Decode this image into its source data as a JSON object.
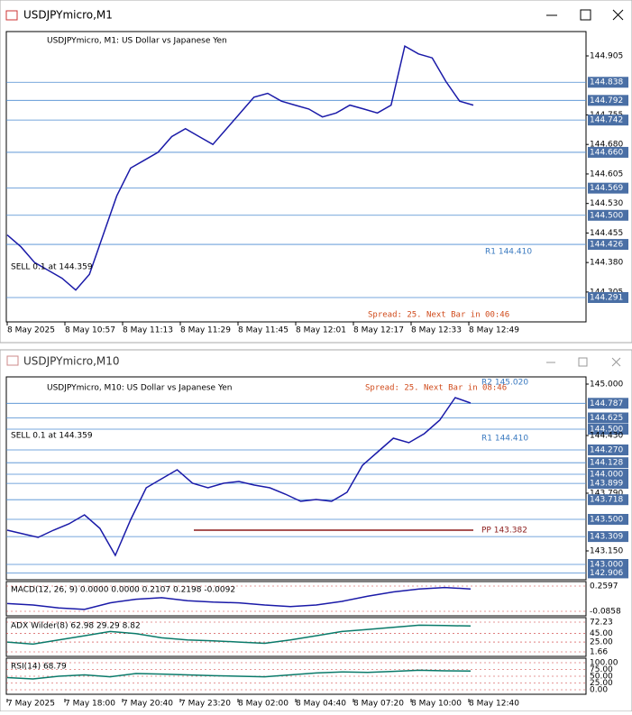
{
  "windows": [
    {
      "title": "USDJPYmicro,M1",
      "header": "USDJPYmicro, M1: US Dollar vs Japanese Yen",
      "price_labels": [
        {
          "label": "144.905",
          "boxed": false
        },
        {
          "label": "144.838",
          "boxed": true
        },
        {
          "label": "144.792",
          "boxed": true
        },
        {
          "label": "144.755",
          "boxed": false
        },
        {
          "label": "144.742",
          "boxed": true
        },
        {
          "label": "144.680",
          "boxed": false
        },
        {
          "label": "144.660",
          "boxed": true
        },
        {
          "label": "144.605",
          "boxed": false
        },
        {
          "label": "144.569",
          "boxed": true
        },
        {
          "label": "144.530",
          "boxed": false
        },
        {
          "label": "144.500",
          "boxed": true
        },
        {
          "label": "144.455",
          "boxed": false
        },
        {
          "label": "144.426",
          "boxed": true
        },
        {
          "label": "144.380",
          "boxed": false
        },
        {
          "label": "144.305",
          "boxed": false
        },
        {
          "label": "144.291",
          "boxed": true
        }
      ],
      "time_labels": [
        "8 May 2025",
        "8 May 10:57",
        "8 May 11:13",
        "8 May 11:29",
        "8 May 11:45",
        "8 May 12:01",
        "8 May 12:17",
        "8 May 12:33",
        "8 May 12:49"
      ],
      "spread": "Spread: 25. Next Bar in 00:46",
      "r1": "R1 144.410",
      "sell": "SELL 0.1 at 144.359",
      "price": [
        144.45,
        144.42,
        144.38,
        144.36,
        144.34,
        144.31,
        144.35,
        144.45,
        144.55,
        144.62,
        144.64,
        144.66,
        144.7,
        144.72,
        144.7,
        144.68,
        144.72,
        144.76,
        144.8,
        144.81,
        144.79,
        144.78,
        144.77,
        144.75,
        144.76,
        144.78,
        144.77,
        144.76,
        144.78,
        144.93,
        144.91,
        144.9,
        144.84,
        144.79,
        144.78
      ]
    },
    {
      "title": "USDJPYmicro,M10",
      "header": "USDJPYmicro, M10: US Dollar vs Japanese Yen",
      "price_labels": [
        {
          "label": "145.000",
          "boxed": false
        },
        {
          "label": "144.787",
          "boxed": true
        },
        {
          "label": "144.625",
          "boxed": true
        },
        {
          "label": "144.500",
          "boxed": true
        },
        {
          "label": "144.430",
          "boxed": false
        },
        {
          "label": "144.270",
          "boxed": true
        },
        {
          "label": "144.128",
          "boxed": true
        },
        {
          "label": "144.000",
          "boxed": true
        },
        {
          "label": "143.899",
          "boxed": true
        },
        {
          "label": "143.790",
          "boxed": false
        },
        {
          "label": "143.718",
          "boxed": true
        },
        {
          "label": "143.500",
          "boxed": true
        },
        {
          "label": "143.309",
          "boxed": true
        },
        {
          "label": "143.150",
          "boxed": false
        },
        {
          "label": "143.000",
          "boxed": true
        },
        {
          "label": "142.906",
          "boxed": true
        }
      ],
      "time_labels": [
        "7 May 2025",
        "7 May 18:00",
        "7 May 20:40",
        "7 May 23:20",
        "8 May 02:00",
        "8 May 04:40",
        "8 May 07:20",
        "8 May 10:00",
        "8 May 12:40"
      ],
      "spread": "Spread: 25. Next Bar in 08:46",
      "r1": "R1 144.410",
      "r2": "R2 145.020",
      "pp": "PP 143.382",
      "sell": "SELL 0.1 at 144.359",
      "price": [
        143.38,
        143.34,
        143.3,
        143.38,
        143.45,
        143.55,
        143.4,
        143.1,
        143.5,
        143.85,
        143.95,
        144.05,
        143.9,
        143.85,
        143.9,
        143.92,
        143.88,
        143.85,
        143.78,
        143.7,
        143.72,
        143.7,
        143.8,
        144.1,
        144.25,
        144.4,
        144.35,
        144.45,
        144.6,
        144.85,
        144.79
      ],
      "indicators": [
        {
          "label": "MACD(12, 26, 9) 0.0000 0.0000 0.2107 0.2198 -0.0092",
          "axis": [
            "0.2597",
            "-0.0858"
          ],
          "values": [
            0.02,
            0.0,
            -0.04,
            -0.06,
            0.03,
            0.08,
            0.1,
            0.06,
            0.04,
            0.03,
            0.0,
            -0.02,
            0.0,
            0.05,
            0.12,
            0.18,
            0.22,
            0.24,
            0.22
          ]
        },
        {
          "label": "ADX Wilder(8) 62.98 29.29 8.82",
          "axis": [
            "72.23",
            "45.00",
            "25.00",
            "1.66"
          ],
          "values": [
            25,
            20,
            30,
            40,
            50,
            45,
            35,
            30,
            28,
            25,
            22,
            30,
            40,
            50,
            55,
            60,
            65,
            64,
            63
          ]
        },
        {
          "label": "RSI(14) 68.79",
          "axis": [
            "100.00",
            "75.00",
            "50.00",
            "25.00",
            "0.00"
          ],
          "values": [
            45,
            40,
            50,
            55,
            48,
            60,
            58,
            55,
            52,
            50,
            48,
            55,
            62,
            66,
            64,
            68,
            72,
            70,
            69
          ]
        }
      ]
    }
  ]
}
